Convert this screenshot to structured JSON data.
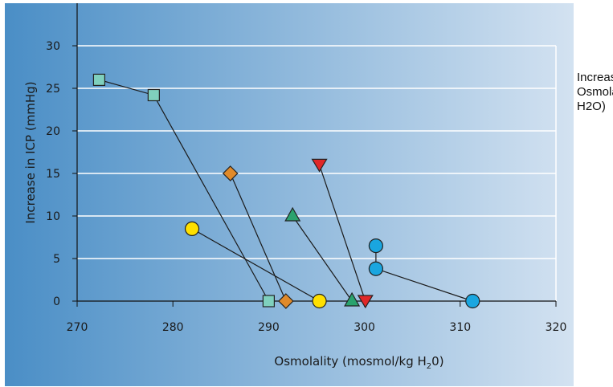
{
  "chart_data": {
    "type": "scatter",
    "xlabel": "Osmolality (mosmol/kg H",
    "xlabel_sub": "2",
    "xlabel_end": "0)",
    "ylabel": "Increase in ICP (mmHg)",
    "xlim": [
      270,
      320
    ],
    "ylim": [
      0,
      30
    ],
    "xticks": [
      "270",
      "280",
      "290",
      "300",
      "310",
      "320"
    ],
    "yticks": [
      "0",
      "5",
      "10",
      "15",
      "20",
      "25",
      "30"
    ],
    "grid": true,
    "series": [
      {
        "marker": "square",
        "color": "#7fd0bd",
        "points": [
          [
            272.3,
            26
          ],
          [
            278,
            24.2
          ],
          [
            290,
            0
          ]
        ]
      },
      {
        "marker": "diamond",
        "color": "#e08a2a",
        "points": [
          [
            286,
            15
          ],
          [
            291.8,
            0
          ]
        ]
      },
      {
        "marker": "circle",
        "color": "#ffe000",
        "points": [
          [
            282,
            8.5
          ],
          [
            295.3,
            0
          ]
        ]
      },
      {
        "marker": "triangle",
        "color": "#2aa36e",
        "points": [
          [
            292.5,
            10
          ],
          [
            298.7,
            0
          ]
        ]
      },
      {
        "marker": "tri-down",
        "color": "#e02828",
        "points": [
          [
            295.3,
            16
          ],
          [
            300.1,
            0
          ]
        ]
      },
      {
        "marker": "circle",
        "color": "#1aa6e0",
        "points": [
          [
            301.2,
            6.5
          ],
          [
            301.2,
            3.8
          ],
          [
            311.3,
            0
          ]
        ]
      }
    ]
  },
  "side_note": {
    "line1": "Increase in ICP vs",
    "line2": "Osmolality (mosmol/kg",
    "line3": "H2O)"
  }
}
